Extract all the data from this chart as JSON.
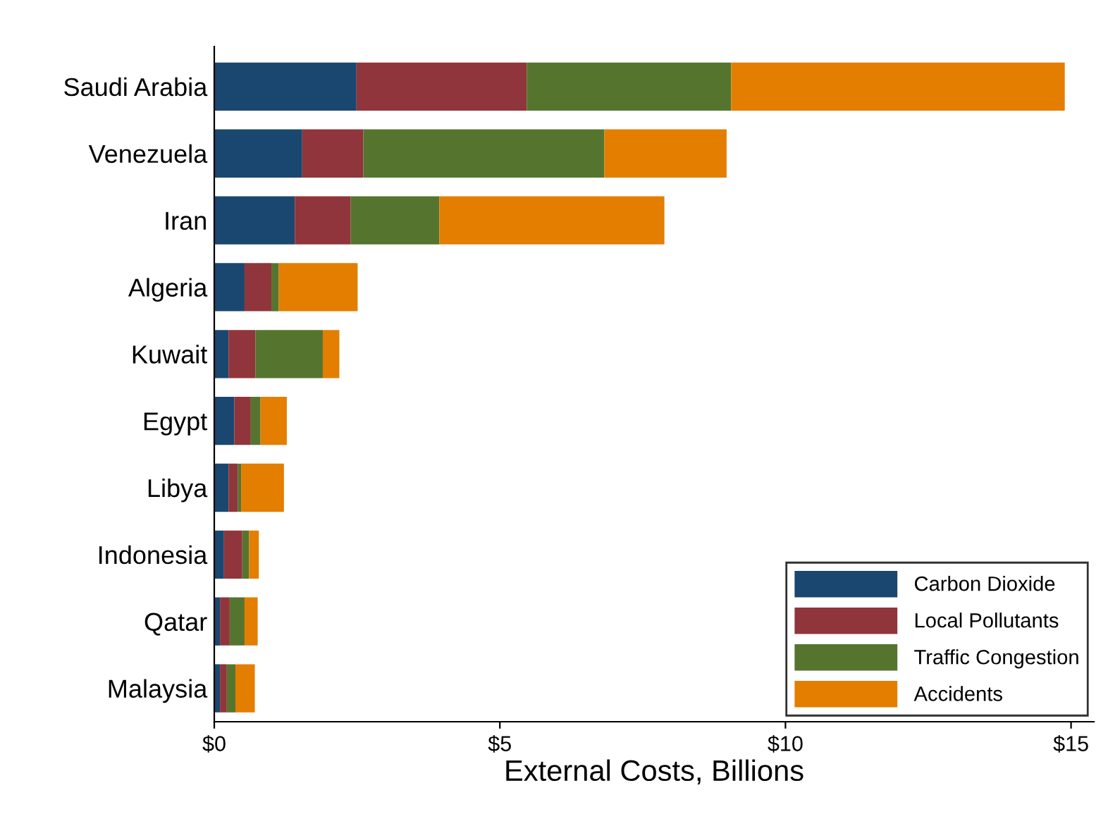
{
  "chart_data": {
    "type": "bar",
    "orientation": "horizontal",
    "stacked": true,
    "xlabel": "External Costs, Billions",
    "categories": [
      "Saudi Arabia",
      "Venezuela",
      "Iran",
      "Algeria",
      "Kuwait",
      "Egypt",
      "Libya",
      "Indonesia",
      "Qatar",
      "Malaysia"
    ],
    "series": [
      {
        "name": "Carbon Dioxide",
        "color": "#1a476f",
        "values": [
          2.49,
          1.54,
          1.41,
          0.53,
          0.25,
          0.35,
          0.25,
          0.17,
          0.1,
          0.1
        ]
      },
      {
        "name": "Local Pollutants",
        "color": "#90353b",
        "values": [
          2.98,
          1.07,
          0.98,
          0.47,
          0.47,
          0.29,
          0.16,
          0.32,
          0.17,
          0.12
        ]
      },
      {
        "name": "Traffic Congestion",
        "color": "#55752f",
        "values": [
          3.58,
          4.22,
          1.55,
          0.13,
          1.18,
          0.17,
          0.06,
          0.12,
          0.26,
          0.15
        ]
      },
      {
        "name": "Accidents",
        "color": "#e37e00",
        "values": [
          5.84,
          2.14,
          3.94,
          1.38,
          0.29,
          0.46,
          0.75,
          0.17,
          0.23,
          0.34
        ]
      }
    ],
    "xlim": [
      0,
      15.4
    ],
    "xticks": [
      {
        "value": 0,
        "label": "$0"
      },
      {
        "value": 5,
        "label": "$5"
      },
      {
        "value": 10,
        "label": "$10"
      },
      {
        "value": 15,
        "label": "$15"
      }
    ],
    "grid": false,
    "legend": "bottom right"
  }
}
